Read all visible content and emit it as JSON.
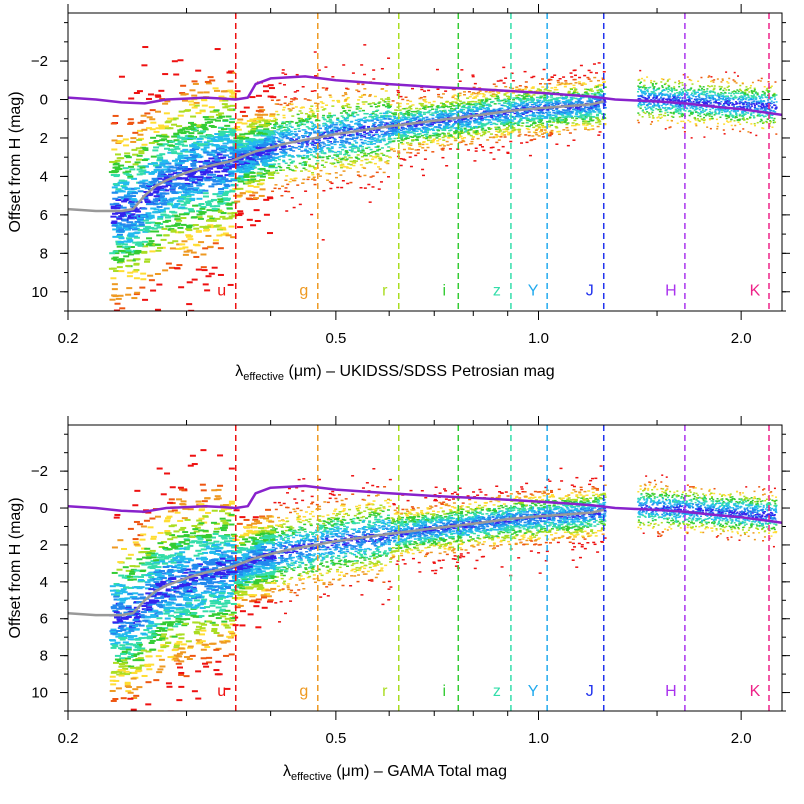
{
  "chart_data": [
    {
      "type": "scatter",
      "title": "",
      "xlabel": {
        "lambda": "λ",
        "subscript": "effective",
        "suffix": " (μm) – UKIDSS/SDSS Petrosian mag"
      },
      "ylabel": "Offset from H (mag)",
      "xscale": "log",
      "xlim": [
        0.2,
        2.3
      ],
      "ylim": [
        11,
        -4.5
      ],
      "y_reversed": true,
      "xticks": [
        {
          "value": 0.2,
          "label": "0.2"
        },
        {
          "value": 0.5,
          "label": "0.5"
        },
        {
          "value": 1.0,
          "label": "1.0"
        },
        {
          "value": 2.0,
          "label": "2.0"
        }
      ],
      "yticks": [
        {
          "value": -2,
          "label": "−2"
        },
        {
          "value": 0,
          "label": "0"
        },
        {
          "value": 2,
          "label": "2"
        },
        {
          "value": 4,
          "label": "4"
        },
        {
          "value": 6,
          "label": "6"
        },
        {
          "value": 8,
          "label": "8"
        },
        {
          "value": 10,
          "label": "10"
        }
      ],
      "bands": [
        {
          "name": "u",
          "lambda": 0.355,
          "color": "#ee1111"
        },
        {
          "name": "g",
          "lambda": 0.47,
          "color": "#ee9922"
        },
        {
          "name": "r",
          "lambda": 0.62,
          "color": "#aadd22"
        },
        {
          "name": "i",
          "lambda": 0.76,
          "color": "#33cc33"
        },
        {
          "name": "z",
          "lambda": 0.91,
          "color": "#33ddaa"
        },
        {
          "name": "Y",
          "lambda": 1.03,
          "color": "#22aaee"
        },
        {
          "name": "J",
          "lambda": 1.25,
          "color": "#2233ee"
        },
        {
          "name": "H",
          "lambda": 1.65,
          "color": "#aa33ee"
        },
        {
          "name": "K",
          "lambda": 2.2,
          "color": "#ee2288"
        }
      ],
      "series": [
        {
          "name": "upper model curve",
          "color": "#8822cc",
          "x": [
            0.2,
            0.22,
            0.24,
            0.26,
            0.28,
            0.3,
            0.32,
            0.34,
            0.355,
            0.37,
            0.38,
            0.4,
            0.45,
            0.5,
            0.6,
            0.7,
            0.8,
            0.9,
            1.0,
            1.1,
            1.2,
            1.3,
            1.4,
            1.5,
            1.65,
            1.8,
            2.0,
            2.2,
            2.3
          ],
          "y": [
            -0.1,
            0.0,
            0.15,
            0.2,
            0.0,
            -0.05,
            -0.1,
            -0.05,
            0.0,
            -0.1,
            -0.8,
            -1.1,
            -1.2,
            -1.0,
            -0.8,
            -0.65,
            -0.55,
            -0.45,
            -0.35,
            -0.25,
            -0.15,
            0.0,
            0.05,
            0.1,
            0.2,
            0.35,
            0.5,
            0.7,
            0.8
          ]
        },
        {
          "name": "median curve",
          "color": "#999999",
          "x": [
            0.2,
            0.22,
            0.24,
            0.25,
            0.26,
            0.27,
            0.28,
            0.3,
            0.32,
            0.35,
            0.38,
            0.42,
            0.5,
            0.6,
            0.7,
            0.8,
            0.9,
            1.0,
            1.1,
            1.2,
            1.25
          ],
          "y": [
            5.7,
            5.8,
            5.8,
            5.7,
            5.0,
            4.5,
            4.2,
            3.8,
            3.5,
            3.2,
            2.7,
            2.3,
            1.8,
            1.4,
            1.1,
            0.85,
            0.6,
            0.45,
            0.35,
            0.25,
            0.1
          ]
        }
      ]
    },
    {
      "type": "scatter",
      "title": "",
      "xlabel": {
        "lambda": "λ",
        "subscript": "effective",
        "suffix": " (μm) – GAMA Total mag"
      },
      "ylabel": "Offset from H (mag)",
      "xscale": "log",
      "xlim": [
        0.2,
        2.3
      ],
      "ylim": [
        11,
        -4.5
      ],
      "y_reversed": true,
      "xticks": [
        {
          "value": 0.2,
          "label": "0.2"
        },
        {
          "value": 0.5,
          "label": "0.5"
        },
        {
          "value": 1.0,
          "label": "1.0"
        },
        {
          "value": 2.0,
          "label": "2.0"
        }
      ],
      "yticks": [
        {
          "value": -2,
          "label": "−2"
        },
        {
          "value": 0,
          "label": "0"
        },
        {
          "value": 2,
          "label": "2"
        },
        {
          "value": 4,
          "label": "4"
        },
        {
          "value": 6,
          "label": "6"
        },
        {
          "value": 8,
          "label": "8"
        },
        {
          "value": 10,
          "label": "10"
        }
      ],
      "bands": [
        {
          "name": "u",
          "lambda": 0.355,
          "color": "#ee1111"
        },
        {
          "name": "g",
          "lambda": 0.47,
          "color": "#ee9922"
        },
        {
          "name": "r",
          "lambda": 0.62,
          "color": "#aadd22"
        },
        {
          "name": "i",
          "lambda": 0.76,
          "color": "#33cc33"
        },
        {
          "name": "z",
          "lambda": 0.91,
          "color": "#33ddaa"
        },
        {
          "name": "Y",
          "lambda": 1.03,
          "color": "#22aaee"
        },
        {
          "name": "J",
          "lambda": 1.25,
          "color": "#2233ee"
        },
        {
          "name": "H",
          "lambda": 1.65,
          "color": "#aa33ee"
        },
        {
          "name": "K",
          "lambda": 2.2,
          "color": "#ee2288"
        }
      ],
      "series": [
        {
          "name": "upper model curve",
          "color": "#8822cc",
          "x": [
            0.2,
            0.22,
            0.24,
            0.26,
            0.28,
            0.3,
            0.32,
            0.34,
            0.355,
            0.37,
            0.38,
            0.4,
            0.45,
            0.5,
            0.6,
            0.7,
            0.8,
            0.9,
            1.0,
            1.1,
            1.2,
            1.3,
            1.4,
            1.5,
            1.65,
            1.8,
            2.0,
            2.2,
            2.3
          ],
          "y": [
            -0.1,
            0.0,
            0.15,
            0.2,
            0.0,
            -0.05,
            -0.1,
            -0.05,
            0.0,
            -0.1,
            -0.8,
            -1.1,
            -1.2,
            -1.0,
            -0.8,
            -0.65,
            -0.55,
            -0.45,
            -0.35,
            -0.25,
            -0.15,
            0.0,
            0.05,
            0.1,
            0.2,
            0.35,
            0.5,
            0.7,
            0.8
          ]
        },
        {
          "name": "median curve",
          "color": "#999999",
          "x": [
            0.2,
            0.22,
            0.24,
            0.25,
            0.26,
            0.27,
            0.28,
            0.3,
            0.32,
            0.35,
            0.38,
            0.42,
            0.5,
            0.6,
            0.7,
            0.8,
            0.9,
            1.0,
            1.1,
            1.2,
            1.25
          ],
          "y": [
            5.7,
            5.8,
            5.8,
            5.7,
            5.0,
            4.5,
            4.2,
            3.8,
            3.5,
            3.2,
            2.7,
            2.3,
            1.8,
            1.4,
            1.1,
            0.85,
            0.6,
            0.45,
            0.35,
            0.25,
            0.1
          ]
        }
      ]
    }
  ]
}
